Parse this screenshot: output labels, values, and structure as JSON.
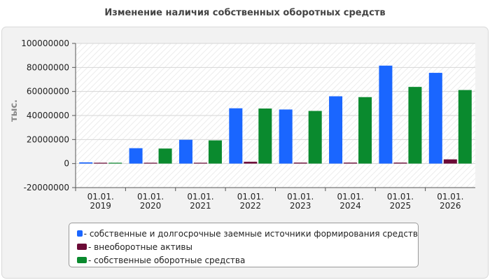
{
  "chart_data": {
    "type": "bar",
    "title": "Изменение наличия собственных оборотных средств",
    "ylabel": "тыс.",
    "xlabel": "",
    "ylim": [
      -20000000,
      100000000
    ],
    "y_ticks": [
      "-20000000",
      "0",
      "20000000",
      "40000000",
      "60000000",
      "80000000",
      "100000000"
    ],
    "categories": [
      [
        "01.01.",
        "2019"
      ],
      [
        "01.01.",
        "2020"
      ],
      [
        "01.01.",
        "2021"
      ],
      [
        "01.01.",
        "2022"
      ],
      [
        "01.01.",
        "2023"
      ],
      [
        "01.01.",
        "2024"
      ],
      [
        "01.01.",
        "2025"
      ],
      [
        "01.01.",
        "2026"
      ]
    ],
    "series": [
      {
        "name": "собственные и долгосрочные заемные источники формирования средств",
        "color": "#1a66ff",
        "values": [
          1000000,
          12800000,
          19800000,
          46000000,
          45000000,
          56000000,
          81500000,
          75500000
        ]
      },
      {
        "name": "внеоборотные активы",
        "color": "#6b0a36",
        "values": [
          700000,
          700000,
          700000,
          1500000,
          800000,
          800000,
          800000,
          3500000
        ]
      },
      {
        "name": "собственные оборотные средства",
        "color": "#0a8a2e",
        "values": [
          700000,
          12500000,
          19300000,
          45800000,
          43800000,
          55300000,
          63800000,
          61200000
        ]
      }
    ],
    "grid": true,
    "legend_position": "bottom"
  }
}
